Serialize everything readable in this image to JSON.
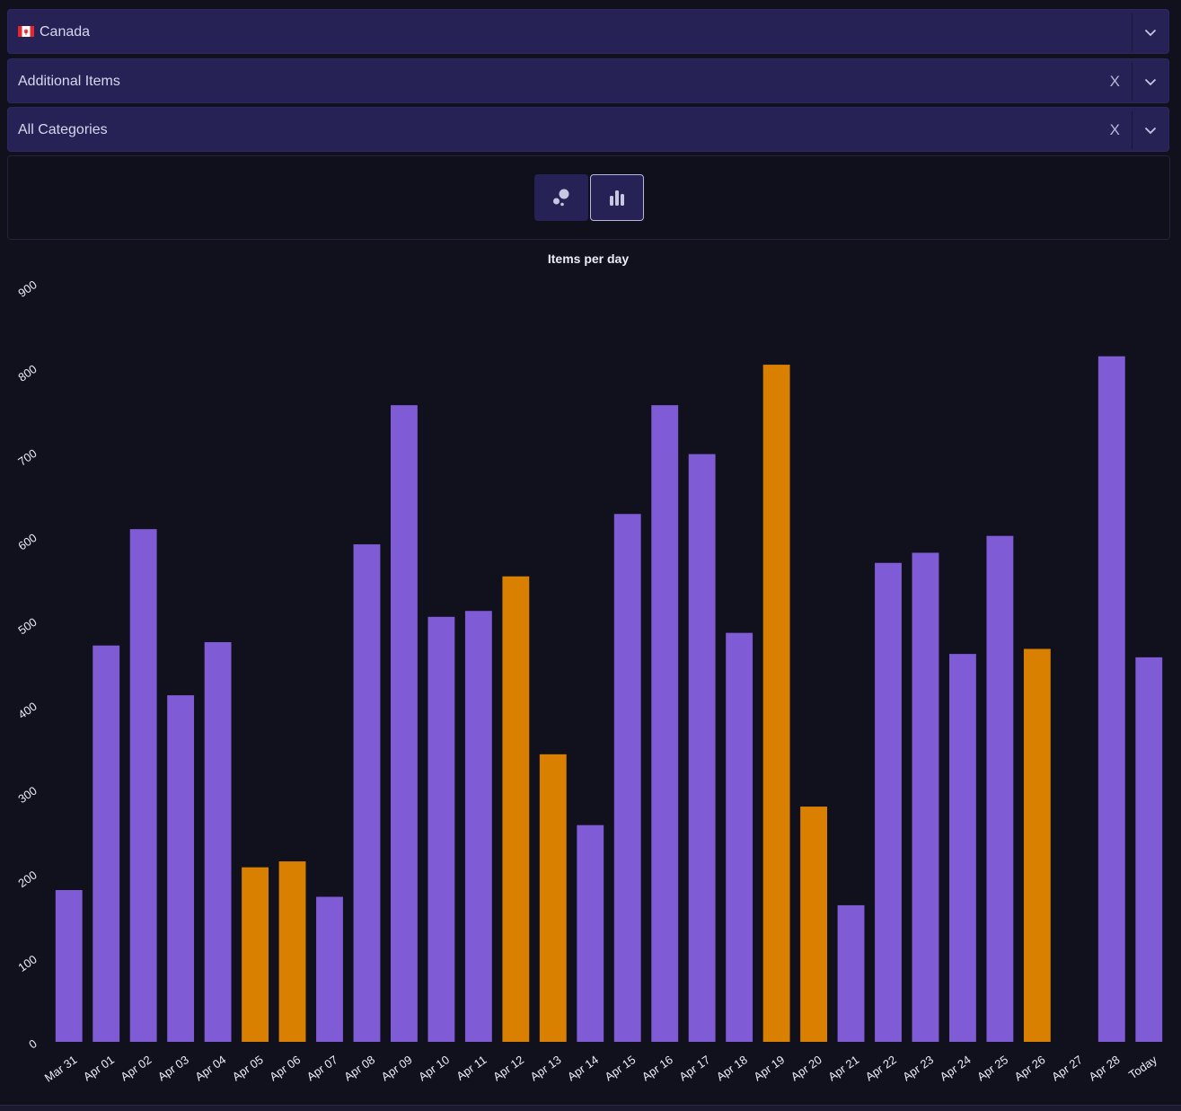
{
  "filters": {
    "country": {
      "value": "Canada",
      "flag_icon": "canada-flag-icon"
    },
    "items": {
      "value": "Additional Items",
      "clear_label": "X"
    },
    "categories": {
      "value": "All Categories",
      "clear_label": "X"
    }
  },
  "view_toggle": {
    "options": [
      {
        "icon": "scatter-chart-icon",
        "active": false
      },
      {
        "icon": "bar-chart-icon",
        "active": true
      }
    ]
  },
  "colors": {
    "weekday": "#7f5bd6",
    "weekend": "#d98000",
    "background": "#11101d",
    "select_bg": "#262255"
  },
  "chart_data": {
    "type": "bar",
    "title": "Items per day",
    "xlabel": "",
    "ylabel": "",
    "ylim": [
      0,
      900
    ],
    "yticks": [
      0,
      100,
      200,
      300,
      400,
      500,
      600,
      700,
      800,
      900
    ],
    "grid": false,
    "categories": [
      "Mar 31",
      "Apr 01",
      "Apr 02",
      "Apr 03",
      "Apr 04",
      "Apr 05",
      "Apr 06",
      "Apr 07",
      "Apr 08",
      "Apr 09",
      "Apr 10",
      "Apr 11",
      "Apr 12",
      "Apr 13",
      "Apr 14",
      "Apr 15",
      "Apr 16",
      "Apr 17",
      "Apr 18",
      "Apr 19",
      "Apr 20",
      "Apr 21",
      "Apr 22",
      "Apr 23",
      "Apr 24",
      "Apr 25",
      "Apr 26",
      "Apr 27",
      "Apr 28",
      "Today"
    ],
    "values": [
      180,
      470,
      608,
      411,
      474,
      207,
      214,
      172,
      590,
      755,
      504,
      511,
      552,
      341,
      257,
      626,
      755,
      697,
      485,
      803,
      279,
      162,
      568,
      580,
      460,
      600,
      466,
      0,
      813,
      456
    ],
    "bar_colors": [
      "weekday",
      "weekday",
      "weekday",
      "weekday",
      "weekday",
      "weekend",
      "weekend",
      "weekday",
      "weekday",
      "weekday",
      "weekday",
      "weekday",
      "weekend",
      "weekend",
      "weekday",
      "weekday",
      "weekday",
      "weekday",
      "weekday",
      "weekend",
      "weekend",
      "weekday",
      "weekday",
      "weekday",
      "weekday",
      "weekday",
      "weekend",
      "weekend",
      "weekday",
      "weekday"
    ]
  }
}
